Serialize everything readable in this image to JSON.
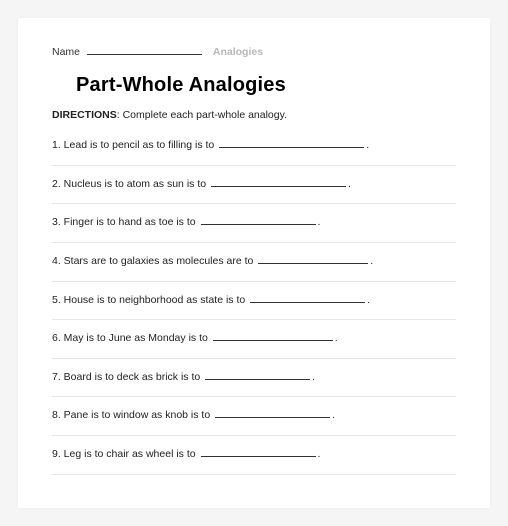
{
  "header": {
    "name_label": "Name",
    "category": "Analogies"
  },
  "title": "Part-Whole Analogies",
  "directions": {
    "label": "DIRECTIONS",
    "text": ": Complete each part-whole analogy."
  },
  "questions": [
    {
      "num": "1",
      "text": "Lead is to pencil as to filling is to",
      "blank_width": 145
    },
    {
      "num": "2",
      "text": "Nucleus is to atom as sun is to",
      "blank_width": 135
    },
    {
      "num": "3",
      "text": "Finger is to hand as toe is to",
      "blank_width": 115
    },
    {
      "num": "4",
      "text": "Stars are to galaxies as molecules are to",
      "blank_width": 110
    },
    {
      "num": "5",
      "text": "House is to neighborhood as state is to",
      "blank_width": 115
    },
    {
      "num": "6",
      "text": "May is to June as Monday is to",
      "blank_width": 120
    },
    {
      "num": "7",
      "text": "Board is to deck as brick is to",
      "blank_width": 105
    },
    {
      "num": "8",
      "text": "Pane is to window as knob is to",
      "blank_width": 115
    },
    {
      "num": "9",
      "text": "Leg is to chair as wheel is to",
      "blank_width": 115
    }
  ],
  "styles": {
    "page_bg": "#ffffff",
    "body_bg": "#f5f5f5",
    "text_color": "#222222",
    "divider_color": "#e8e8e8",
    "category_color": "#b8b8b8",
    "title_fontsize": 20,
    "body_fontsize": 10.5
  }
}
